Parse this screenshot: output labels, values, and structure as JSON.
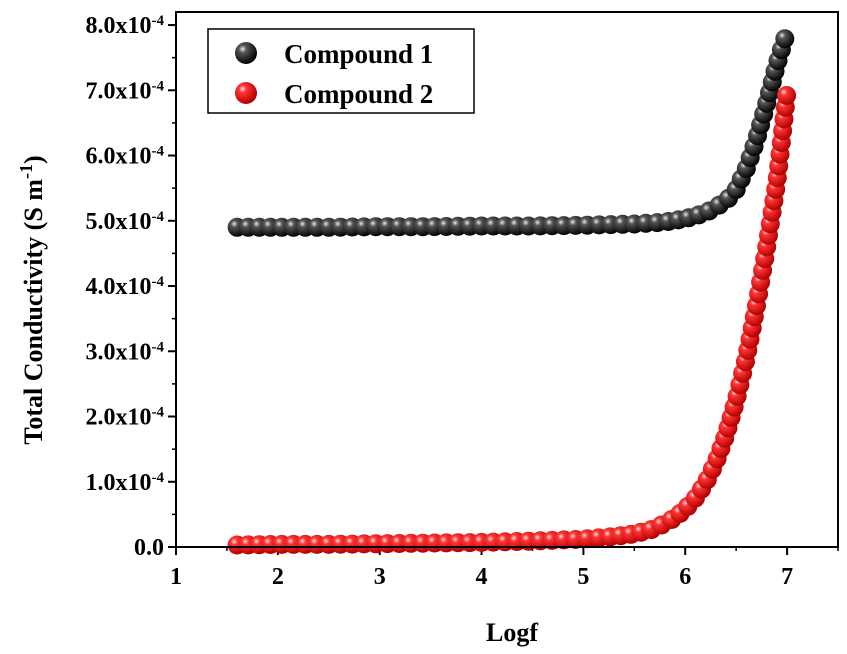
{
  "chart_data": {
    "type": "scatter",
    "title": "",
    "xlabel": "Logf",
    "ylabel": "Total Conductivity (S m",
    "ylabel_sup": "-1",
    "ylabel_close": ")",
    "xlim": [
      1,
      7.5
    ],
    "ylim": [
      0,
      0.00082
    ],
    "x_ticks": [
      {
        "value": 1,
        "label": "1"
      },
      {
        "value": 2,
        "label": "2"
      },
      {
        "value": 3,
        "label": "3"
      },
      {
        "value": 4,
        "label": "4"
      },
      {
        "value": 5,
        "label": "5"
      },
      {
        "value": 6,
        "label": "6"
      },
      {
        "value": 7,
        "label": "7"
      }
    ],
    "y_ticks": [
      {
        "value": 0,
        "label": "0.0",
        "sup": ""
      },
      {
        "value": 0.0001,
        "label": "1.0x10",
        "sup": "-4"
      },
      {
        "value": 0.0002,
        "label": "2.0x10",
        "sup": "-4"
      },
      {
        "value": 0.0003,
        "label": "3.0x10",
        "sup": "-4"
      },
      {
        "value": 0.0004,
        "label": "4.0x10",
        "sup": "-4"
      },
      {
        "value": 0.0005,
        "label": "5.0x10",
        "sup": "-4"
      },
      {
        "value": 0.0006,
        "label": "6.0x10",
        "sup": "-4"
      },
      {
        "value": 0.0007,
        "label": "7.0x10",
        "sup": "-4"
      },
      {
        "value": 0.0008,
        "label": "8.0x10",
        "sup": "-4"
      }
    ],
    "legend_position": "top-left",
    "series": [
      {
        "name": "Compound 1",
        "color": "#111111",
        "x": [
          1.6,
          2.0,
          2.5,
          3.0,
          3.5,
          4.0,
          4.5,
          5.0,
          5.5,
          5.8,
          6.0,
          6.2,
          6.4,
          6.5,
          6.6,
          6.7,
          6.8,
          6.9,
          7.0
        ],
        "values": [
          0.00049,
          0.00049,
          0.00049,
          0.000491,
          0.000491,
          0.000492,
          0.000492,
          0.000493,
          0.000495,
          0.000498,
          0.000503,
          0.000512,
          0.00053,
          0.000548,
          0.00058,
          0.000625,
          0.00068,
          0.00074,
          0.00079
        ]
      },
      {
        "name": "Compound 2",
        "color": "#ee1111",
        "x": [
          1.6,
          2.0,
          2.5,
          3.0,
          3.5,
          4.0,
          4.5,
          5.0,
          5.3,
          5.5,
          5.7,
          5.9,
          6.0,
          6.1,
          6.2,
          6.3,
          6.4,
          6.5,
          6.6,
          6.7,
          6.8,
          6.9,
          7.0
        ],
        "values": [
          3e-06,
          4e-06,
          4e-06,
          5e-06,
          6e-06,
          7e-06,
          9e-06,
          1.2e-05,
          1.6e-05,
          2e-05,
          2.8e-05,
          4.5e-05,
          5.8e-05,
          7.5e-05,
          9.8e-05,
          0.00013,
          0.000172,
          0.000225,
          0.00029,
          0.00037,
          0.00046,
          0.00056,
          0.000698
        ]
      }
    ]
  }
}
